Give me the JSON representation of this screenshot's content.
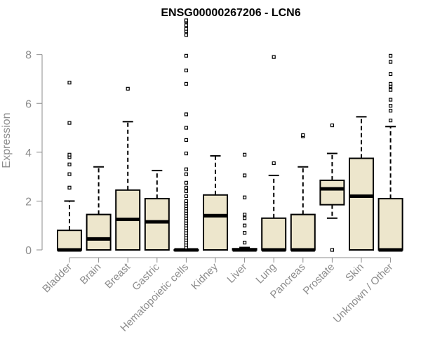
{
  "chart_data": {
    "type": "boxplot",
    "title": "ENSG00000267206 - LCN6",
    "xlabel": "",
    "ylabel": "Expression",
    "ylim": [
      0,
      9.6
    ],
    "yticks": [
      0,
      2,
      4,
      6,
      8
    ],
    "grid": false,
    "legend": "none",
    "box_fill": "#ede6cc",
    "box_stroke": "#000000",
    "axis_color": "#8c8c8c",
    "categories": [
      "Bladder",
      "Brain",
      "Breast",
      "Gastric",
      "Hematopoietic cells",
      "Kidney",
      "Liver",
      "Lung",
      "Pancreas",
      "Prostate",
      "Skin",
      "Unknown / Other"
    ],
    "boxes": [
      {
        "q1": 0,
        "median": 0,
        "q3": 0.8,
        "wmin": 0,
        "wmax": 2.0,
        "outliers": [
          2.55,
          3.1,
          3.5,
          3.8,
          3.9,
          5.2,
          6.85
        ]
      },
      {
        "q1": 0,
        "median": 0.45,
        "q3": 1.45,
        "wmin": 0,
        "wmax": 3.4,
        "outliers": []
      },
      {
        "q1": 0,
        "median": 1.25,
        "q3": 2.45,
        "wmin": 0,
        "wmax": 5.25,
        "outliers": [
          6.6
        ]
      },
      {
        "q1": 0,
        "median": 1.15,
        "q3": 2.1,
        "wmin": 0,
        "wmax": 3.25,
        "outliers": []
      },
      {
        "q1": 0,
        "median": 0,
        "q3": 0,
        "wmin": 0,
        "wmax": 0,
        "outliers": [
          0.1,
          0.2,
          0.3,
          0.4,
          0.5,
          0.6,
          0.7,
          0.8,
          0.9,
          1.0,
          1.1,
          1.2,
          1.3,
          1.4,
          1.5,
          1.6,
          1.7,
          1.8,
          1.9,
          2.0,
          2.2,
          2.4,
          2.55,
          2.75,
          3.1,
          3.3,
          3.95,
          4.5,
          5.0,
          5.55,
          6.8,
          7.35,
          7.95,
          8.8,
          8.95,
          9.05,
          9.2,
          9.35,
          9.4
        ]
      },
      {
        "q1": 0,
        "median": 1.4,
        "q3": 2.25,
        "wmin": 0,
        "wmax": 3.85,
        "outliers": []
      },
      {
        "q1": 0,
        "median": 0,
        "q3": 0.05,
        "wmin": 0,
        "wmax": 0.1,
        "outliers": [
          0.3,
          0.7,
          1.0,
          1.3,
          1.45,
          2.15,
          3.05,
          3.9
        ]
      },
      {
        "q1": 0,
        "median": 0,
        "q3": 1.3,
        "wmin": 0,
        "wmax": 3.05,
        "outliers": [
          3.55,
          7.9
        ]
      },
      {
        "q1": 0,
        "median": 0,
        "q3": 1.45,
        "wmin": 0,
        "wmax": 3.4,
        "outliers": [
          4.65,
          4.7
        ]
      },
      {
        "q1": 1.85,
        "median": 2.5,
        "q3": 2.85,
        "wmin": 1.3,
        "wmax": 3.95,
        "outliers": [
          0,
          5.1
        ]
      },
      {
        "q1": 0,
        "median": 2.2,
        "q3": 3.75,
        "wmin": 0,
        "wmax": 5.45,
        "outliers": []
      },
      {
        "q1": 0,
        "median": 0,
        "q3": 2.1,
        "wmin": 0,
        "wmax": 5.05,
        "outliers": [
          5.3,
          5.7,
          5.9,
          6.15,
          6.55,
          6.7,
          6.8,
          7.2,
          7.7,
          7.95
        ]
      }
    ]
  }
}
